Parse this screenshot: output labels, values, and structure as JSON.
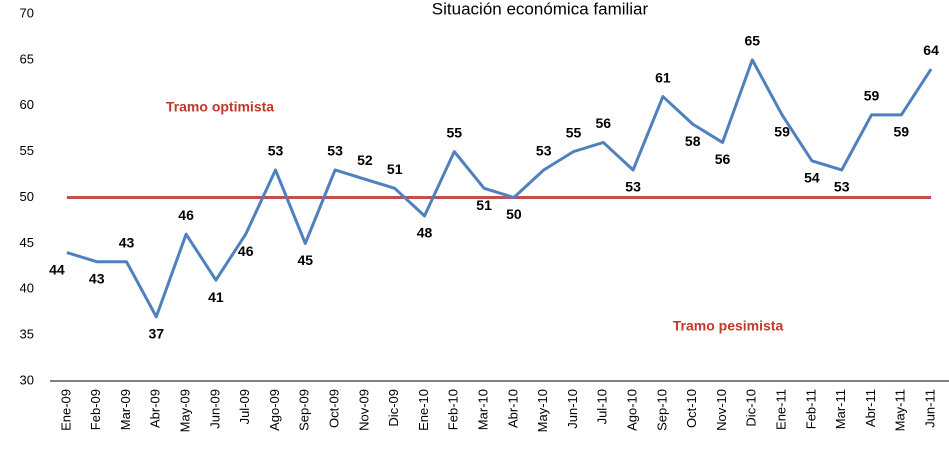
{
  "chart_data": {
    "type": "line",
    "title": "Situación económica familiar",
    "categories": [
      "Ene-09",
      "Feb-09",
      "Mar-09",
      "Abr-09",
      "May-09",
      "Jun-09",
      "Jul-09",
      "Ago-09",
      "Sep-09",
      "Oct-09",
      "Nov-09",
      "Dic-09",
      "Ene-10",
      "Feb-10",
      "Mar-10",
      "Abr-10",
      "May-10",
      "Jun-10",
      "Jul-10",
      "Ago-10",
      "Sep-10",
      "Oct-10",
      "Nov-10",
      "Dic-10",
      "Ene-11",
      "Feb-11",
      "Mar-11",
      "Abr-11",
      "May-11",
      "Jun-11"
    ],
    "values": [
      44,
      43,
      43,
      37,
      46,
      41,
      46,
      53,
      45,
      53,
      52,
      51,
      48,
      55,
      51,
      50,
      53,
      55,
      56,
      53,
      61,
      58,
      56,
      65,
      59,
      54,
      53,
      59,
      59,
      64
    ],
    "color": "#4f81bd",
    "ylim": [
      30,
      70
    ],
    "yticks": [
      30,
      35,
      40,
      45,
      50,
      55,
      60,
      65,
      70
    ],
    "reference_line": {
      "value": 50,
      "color": "#c0504d"
    },
    "annotations": [
      "Tramo optimista",
      "Tramo pesimista"
    ],
    "annotation_color": "#c0392b"
  }
}
